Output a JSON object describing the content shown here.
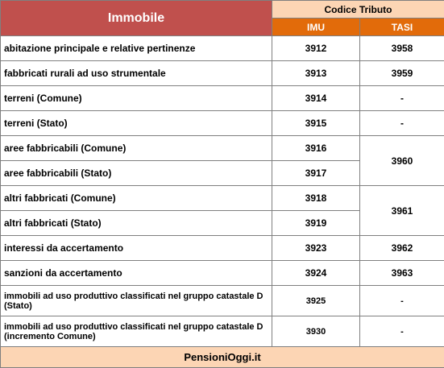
{
  "header": {
    "title": "Immobile",
    "group": "Codice Tributo",
    "columns": [
      "IMU",
      "TASI"
    ]
  },
  "table": {
    "rows": [
      [
        "abitazione principale e relative pertinenze",
        "3912",
        "3958"
      ],
      [
        "fabbricati rurali ad uso strumentale",
        "3913",
        "3959"
      ],
      [
        "terreni (Comune)",
        "3914",
        "-"
      ],
      [
        "terreni (Stato)",
        "3915",
        "-"
      ],
      [
        "aree fabbricabili (Comune)",
        "3916",
        "3960"
      ],
      [
        "aree fabbricabili (Stato)",
        "3917"
      ],
      [
        "altri fabbricati (Comune)",
        "3918",
        "3961"
      ],
      [
        "altri fabbricati (Stato)",
        "3919"
      ],
      [
        "interessi da accertamento",
        "3923",
        "3962"
      ],
      [
        "sanzioni da accertamento",
        "3924",
        "3963"
      ],
      [
        "immobili ad uso produttivo classificati nel gruppo catastale D (Stato)",
        "3925",
        "-"
      ],
      [
        "immobili ad uso produttivo classificati nel gruppo catastale D (incremento Comune)",
        "3930",
        "-"
      ]
    ]
  },
  "footer": "PensioniOggi.it"
}
